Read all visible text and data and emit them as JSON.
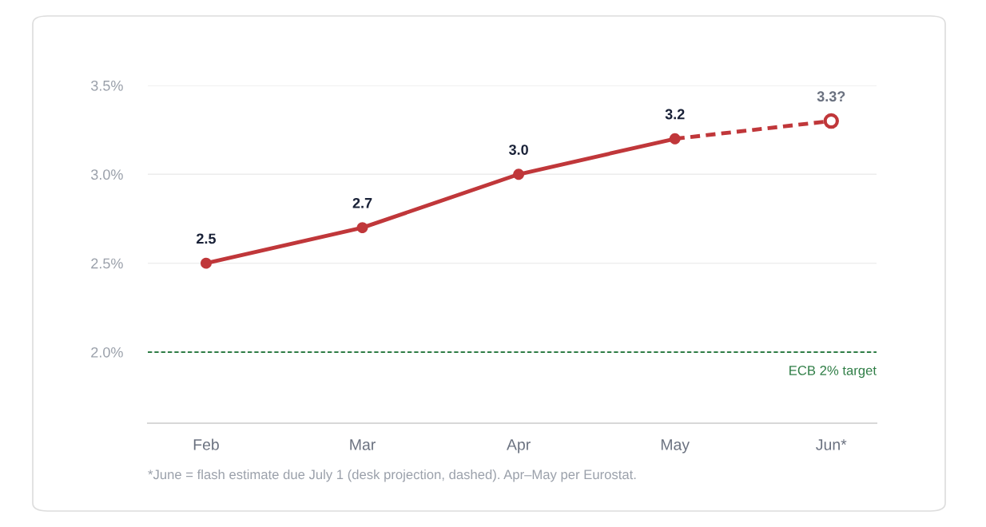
{
  "chart_data": {
    "type": "line",
    "categories": [
      "Feb",
      "Mar",
      "Apr",
      "May",
      "Jun*"
    ],
    "series": [
      {
        "color": "#c0373a",
        "values": [
          2.5,
          2.7,
          3.0,
          3.2,
          null
        ],
        "value_labels": [
          "2.5",
          "2.7",
          "3.0",
          "3.2",
          null
        ],
        "line_style": "solid"
      },
      {
        "color": "#c0373a",
        "values": [
          null,
          null,
          null,
          3.2,
          3.3
        ],
        "value_labels": [
          null,
          null,
          null,
          null,
          "3.3?"
        ],
        "line_style": "dashed"
      }
    ],
    "ylim": [
      1.6,
      3.5
    ],
    "yticks": [
      {
        "value": 2.0,
        "label": "2.0%"
      },
      {
        "value": 2.5,
        "label": "2.5%"
      },
      {
        "value": 3.0,
        "label": "3.0%"
      },
      {
        "value": 3.5,
        "label": "3.5%"
      }
    ],
    "grid": "y",
    "legend": false,
    "marker": "circle",
    "ref_lines": [
      {
        "axis": "y",
        "value": 2.0,
        "label": "ECB 2% target",
        "color": "#2e7d45",
        "line_style": "dashed"
      }
    ],
    "annotations": [
      "*June = flash estimate due July 1 (desk projection, dashed). Apr–May per Eurostat."
    ]
  }
}
